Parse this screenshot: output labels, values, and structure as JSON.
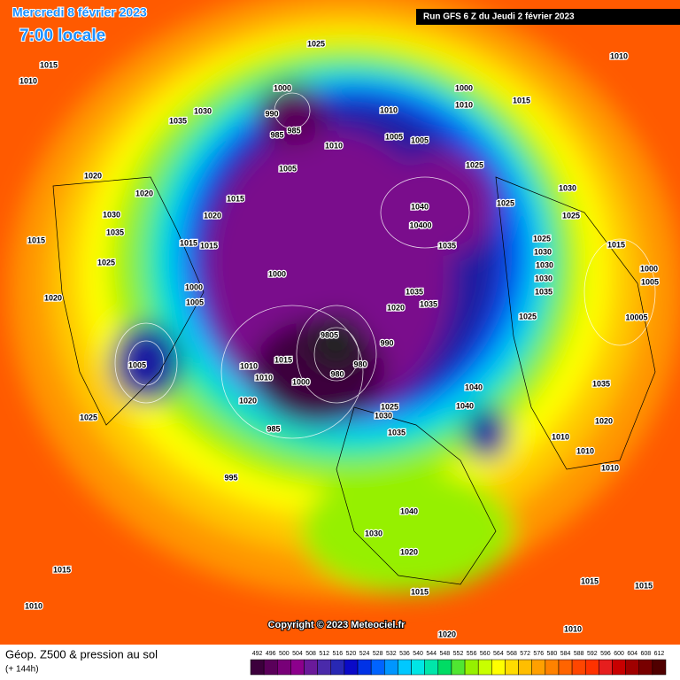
{
  "header": {
    "date": "Mercredi 8 février 2023",
    "time": "7:00 locale",
    "run": "Run GFS 6 Z du Jeudi 2 février 2023"
  },
  "copyright": "Copyright © 2023 Meteociel.fr",
  "footer": {
    "title": "Géop. Z500 & pression au sol",
    "lead": "(+ 144h)"
  },
  "scale": {
    "values": [
      492,
      496,
      500,
      504,
      508,
      512,
      516,
      520,
      524,
      528,
      532,
      536,
      540,
      544,
      548,
      552,
      556,
      560,
      564,
      568,
      572,
      576,
      580,
      584,
      588,
      592,
      596,
      600,
      604,
      608,
      612
    ],
    "colors": [
      "#3c003c",
      "#5a005a",
      "#780078",
      "#8c008c",
      "#6a1a9a",
      "#4a2aaa",
      "#2828b4",
      "#0a0ac8",
      "#0032e6",
      "#0064ff",
      "#0096ff",
      "#00c8ff",
      "#00e6e6",
      "#00e6aa",
      "#00dc64",
      "#50e632",
      "#96f000",
      "#c8ff00",
      "#ffff00",
      "#ffdc00",
      "#ffbe00",
      "#ffa000",
      "#ff8200",
      "#ff6400",
      "#ff4600",
      "#ff3200",
      "#e61e1e",
      "#c80000",
      "#a00000",
      "#780000",
      "#500000"
    ]
  },
  "isobars": [
    "1025",
    "1015",
    "1035",
    "1030",
    "1000",
    "990",
    "985",
    "985",
    "1005",
    "1010",
    "1010",
    "1005",
    "1005",
    "1000",
    "1010",
    "1015",
    "1025",
    "1025",
    "1030",
    "1010",
    "1020",
    "1020",
    "1030",
    "1035",
    "1025",
    "1020",
    "1015",
    "1020",
    "1015",
    "1015",
    "1000",
    "1000",
    "1005",
    "1040",
    "10400",
    "1035",
    "1035",
    "1035",
    "1020",
    "9805",
    "990",
    "980",
    "980",
    "1015",
    "1010",
    "1010",
    "1000",
    "1020",
    "985",
    "995",
    "1040",
    "1040",
    "1025",
    "1030",
    "1035",
    "1010",
    "1010",
    "1010",
    "1005",
    "1025",
    "1025",
    "1030",
    "1030",
    "1030",
    "1035",
    "1025",
    "1015",
    "1000",
    "1005",
    "10005",
    "1035",
    "1020",
    "1040",
    "1030",
    "1020",
    "1015",
    "1015",
    "1010",
    "1015",
    "1015",
    "1010",
    "1020",
    "1025",
    "1015",
    "1010"
  ]
}
